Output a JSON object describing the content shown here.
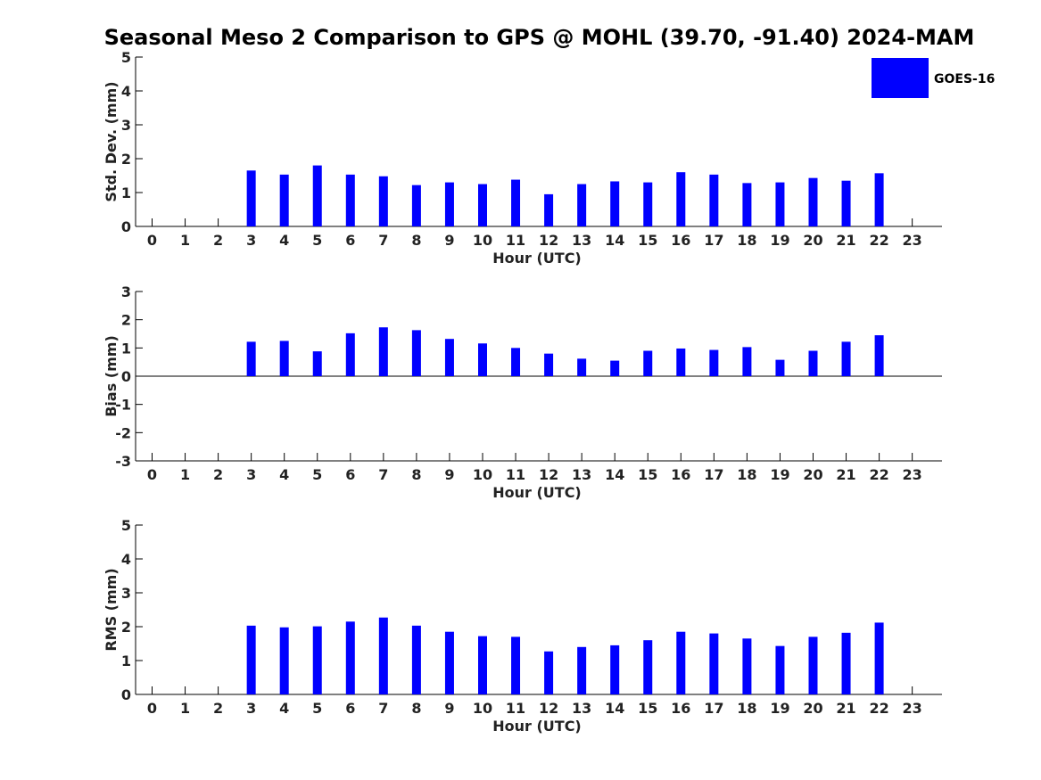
{
  "title": "Seasonal Meso 2 Comparison to GPS @ MOHL (39.70, -91.40) 2024-MAM",
  "colors": {
    "bar": "#0000ff",
    "axis": "#000000",
    "text": "#222222"
  },
  "legend": {
    "label": "GOES-16",
    "placement": "top-right"
  },
  "chart_data": [
    {
      "type": "bar",
      "id": "std",
      "ylabel": "Std. Dev. (mm)",
      "xlabel": "Hour (UTC)",
      "ylim": [
        0,
        5
      ],
      "yticks": [
        "0",
        "1",
        "2",
        "3",
        "4",
        "5"
      ],
      "categories": [
        "0",
        "1",
        "2",
        "3",
        "4",
        "5",
        "6",
        "7",
        "8",
        "9",
        "10",
        "11",
        "12",
        "13",
        "14",
        "15",
        "16",
        "17",
        "18",
        "19",
        "20",
        "21",
        "22",
        "23"
      ],
      "series": [
        {
          "name": "GOES-16",
          "values": [
            null,
            null,
            null,
            1.65,
            1.53,
            1.8,
            1.53,
            1.48,
            1.22,
            1.3,
            1.25,
            1.38,
            0.95,
            1.25,
            1.33,
            1.3,
            1.6,
            1.53,
            1.28,
            1.3,
            1.43,
            1.35,
            1.57,
            null
          ]
        }
      ]
    },
    {
      "type": "bar",
      "id": "bias",
      "ylabel": "Bias (mm)",
      "xlabel": "Hour (UTC)",
      "ylim": [
        -3,
        3
      ],
      "yticks": [
        "-3",
        "-2",
        "-1",
        "0",
        "1",
        "2",
        "3"
      ],
      "categories": [
        "0",
        "1",
        "2",
        "3",
        "4",
        "5",
        "6",
        "7",
        "8",
        "9",
        "10",
        "11",
        "12",
        "13",
        "14",
        "15",
        "16",
        "17",
        "18",
        "19",
        "20",
        "21",
        "22",
        "23"
      ],
      "series": [
        {
          "name": "GOES-16",
          "values": [
            null,
            null,
            null,
            1.22,
            1.25,
            0.88,
            1.52,
            1.73,
            1.63,
            1.32,
            1.16,
            1.0,
            0.8,
            0.62,
            0.55,
            0.9,
            0.98,
            0.93,
            1.03,
            0.58,
            0.9,
            1.22,
            1.45,
            null
          ]
        }
      ]
    },
    {
      "type": "bar",
      "id": "rms",
      "ylabel": "RMS (mm)",
      "xlabel": "Hour (UTC)",
      "ylim": [
        0,
        5
      ],
      "yticks": [
        "0",
        "1",
        "2",
        "3",
        "4",
        "5"
      ],
      "categories": [
        "0",
        "1",
        "2",
        "3",
        "4",
        "5",
        "6",
        "7",
        "8",
        "9",
        "10",
        "11",
        "12",
        "13",
        "14",
        "15",
        "16",
        "17",
        "18",
        "19",
        "20",
        "21",
        "22",
        "23"
      ],
      "series": [
        {
          "name": "GOES-16",
          "values": [
            null,
            null,
            null,
            2.03,
            1.98,
            2.01,
            2.15,
            2.27,
            2.03,
            1.85,
            1.72,
            1.7,
            1.27,
            1.4,
            1.45,
            1.6,
            1.85,
            1.8,
            1.65,
            1.43,
            1.7,
            1.82,
            2.12,
            null
          ]
        }
      ]
    }
  ]
}
